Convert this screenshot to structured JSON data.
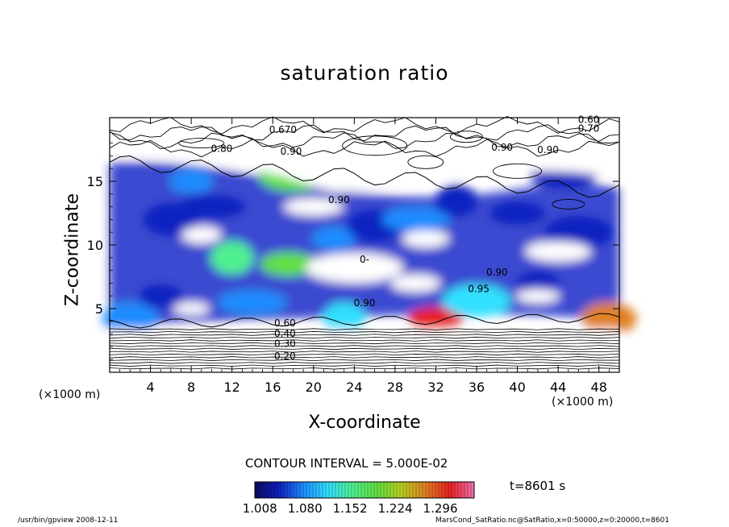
{
  "title": "saturation ratio",
  "contour_interval": "CONTOUR INTERVAL = 5.000E-02",
  "time_label": "t=8601 s",
  "footer": {
    "left": "/usr/bin/gpview   2008-12-11",
    "right": "MarsCond_SatRatio.nc@SatRatio,x=0:50000,z=0:20000,t=8601"
  },
  "chart_data": {
    "type": "heatmap",
    "title": "saturation ratio",
    "xlabel": "X-coordinate",
    "ylabel": "Z-coordinate",
    "x_unit_label": "(×1000 m)",
    "x_range": [
      0,
      50
    ],
    "y_range": [
      0,
      20
    ],
    "x_ticks": [
      4,
      8,
      12,
      16,
      20,
      24,
      28,
      32,
      36,
      40,
      44,
      48
    ],
    "y_ticks": [
      5,
      10,
      15
    ],
    "colorbar": {
      "min": 1.0,
      "max": 1.35,
      "tick_values": [
        1.008,
        1.08,
        1.152,
        1.224,
        1.296
      ],
      "tick_labels": [
        "1.008",
        "1.080",
        "1.152",
        "1.224",
        "1.296"
      ],
      "colors": [
        "#0a0a60",
        "#1020c0",
        "#1e8cff",
        "#30e0ff",
        "#50f090",
        "#60e040",
        "#b8d020",
        "#e08020",
        "#e82020",
        "#f070b0"
      ]
    },
    "contour_labels": [
      {
        "x": 17,
        "y": 18.8,
        "text": "0.670"
      },
      {
        "x": 11,
        "y": 17.3,
        "text": "0.80"
      },
      {
        "x": 17.8,
        "y": 17.1,
        "text": "0.90"
      },
      {
        "x": 47,
        "y": 19.6,
        "text": "0.60"
      },
      {
        "x": 47,
        "y": 18.9,
        "text": "0.70"
      },
      {
        "x": 38.5,
        "y": 17.4,
        "text": "0.90"
      },
      {
        "x": 43,
        "y": 17.2,
        "text": "0.90"
      },
      {
        "x": 22.5,
        "y": 13.3,
        "text": "0.90"
      },
      {
        "x": 25,
        "y": 8.6,
        "text": "0-"
      },
      {
        "x": 38,
        "y": 7.6,
        "text": "0.90"
      },
      {
        "x": 36.2,
        "y": 6.3,
        "text": "0.95"
      },
      {
        "x": 25,
        "y": 5.2,
        "text": "0.90"
      },
      {
        "x": 17.2,
        "y": 3.6,
        "text": "0.60"
      },
      {
        "x": 17.2,
        "y": 2.8,
        "text": "0.40"
      },
      {
        "x": 17.2,
        "y": 2.0,
        "text": "0.30"
      },
      {
        "x": 17.2,
        "y": 1.0,
        "text": "0.20"
      }
    ],
    "regions": [
      {
        "x": 8,
        "y": 15,
        "v": 1.1
      },
      {
        "x": 6,
        "y": 12,
        "v": 1.05
      },
      {
        "x": 10,
        "y": 13,
        "v": 1.06
      },
      {
        "x": 12,
        "y": 9,
        "v": 1.16
      },
      {
        "x": 17.5,
        "y": 8.5,
        "v": 1.18
      },
      {
        "x": 18,
        "y": 15.5,
        "v": 1.18
      },
      {
        "x": 22,
        "y": 10.5,
        "v": 1.08
      },
      {
        "x": 26,
        "y": 11.5,
        "v": 1.06
      },
      {
        "x": 30,
        "y": 12,
        "v": 1.07
      },
      {
        "x": 34,
        "y": 13.5,
        "v": 1.05
      },
      {
        "x": 40,
        "y": 12.5,
        "v": 1.05
      },
      {
        "x": 46,
        "y": 11,
        "v": 1.06
      },
      {
        "x": 5,
        "y": 6,
        "v": 1.05
      },
      {
        "x": 2,
        "y": 4.2,
        "v": 1.1
      },
      {
        "x": 14,
        "y": 5.5,
        "v": 1.1
      },
      {
        "x": 23,
        "y": 4.2,
        "v": 1.14
      },
      {
        "x": 32,
        "y": 4.2,
        "v": 1.3
      },
      {
        "x": 36,
        "y": 5.6,
        "v": 1.12
      },
      {
        "x": 42,
        "y": 7,
        "v": 1.06
      },
      {
        "x": 49,
        "y": 4.2,
        "v": 1.28
      },
      {
        "x": 44.5,
        "y": 15.4,
        "v": 1.04
      }
    ]
  }
}
